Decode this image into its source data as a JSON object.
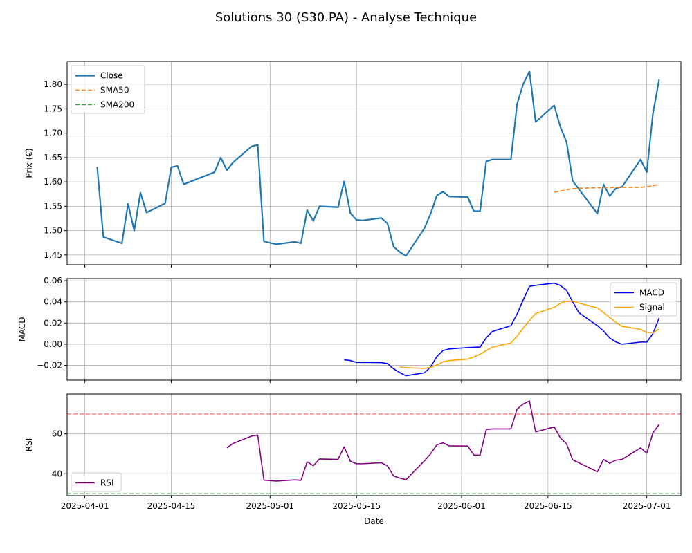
{
  "figure": {
    "title": "Solutions 30 (S30.PA) - Analyse Technique"
  },
  "chart_data": [
    {
      "type": "line",
      "panel": "price",
      "ylabel": "Prix (€)",
      "xlabel": "",
      "ylim": [
        1.43,
        1.847
      ],
      "yticks": [
        1.45,
        1.5,
        1.55,
        1.6,
        1.65,
        1.7,
        1.75,
        1.8
      ],
      "ytick_labels": [
        "1.45",
        "1.50",
        "1.55",
        "1.60",
        "1.65",
        "1.70",
        "1.75",
        "1.80"
      ],
      "grid": true,
      "legend": {
        "position": "top-left",
        "entries": [
          "Close",
          "SMA50",
          "SMA200"
        ]
      },
      "series": [
        {
          "name": "Close",
          "color": "#1f77b4",
          "style": "solid",
          "x": [
            "2025-04-03",
            "2025-04-04",
            "2025-04-07",
            "2025-04-08",
            "2025-04-09",
            "2025-04-10",
            "2025-04-11",
            "2025-04-14",
            "2025-04-15",
            "2025-04-16",
            "2025-04-17",
            "2025-04-22",
            "2025-04-23",
            "2025-04-24",
            "2025-04-25",
            "2025-04-28",
            "2025-04-29",
            "2025-04-30",
            "2025-05-02",
            "2025-05-05",
            "2025-05-06",
            "2025-05-07",
            "2025-05-08",
            "2025-05-09",
            "2025-05-12",
            "2025-05-13",
            "2025-05-14",
            "2025-05-15",
            "2025-05-16",
            "2025-05-19",
            "2025-05-20",
            "2025-05-21",
            "2025-05-22",
            "2025-05-23",
            "2025-05-26",
            "2025-05-27",
            "2025-05-28",
            "2025-05-29",
            "2025-05-30",
            "2025-06-02",
            "2025-06-03",
            "2025-06-04",
            "2025-06-05",
            "2025-06-06",
            "2025-06-09",
            "2025-06-10",
            "2025-06-11",
            "2025-06-12",
            "2025-06-13",
            "2025-06-16",
            "2025-06-17",
            "2025-06-18",
            "2025-06-19",
            "2025-06-23",
            "2025-06-24",
            "2025-06-25",
            "2025-06-26",
            "2025-06-27",
            "2025-06-30",
            "2025-07-01",
            "2025-07-02",
            "2025-07-03"
          ],
          "values": [
            1.631,
            1.487,
            1.474,
            1.555,
            1.5,
            1.578,
            1.537,
            1.556,
            1.63,
            1.633,
            1.595,
            1.62,
            1.65,
            1.624,
            1.64,
            1.673,
            1.676,
            1.478,
            1.472,
            1.477,
            1.474,
            1.542,
            1.52,
            1.55,
            1.548,
            1.601,
            1.536,
            1.522,
            1.521,
            1.526,
            1.515,
            1.467,
            1.456,
            1.448,
            1.505,
            1.535,
            1.572,
            1.58,
            1.57,
            1.569,
            1.54,
            1.54,
            1.642,
            1.646,
            1.646,
            1.76,
            1.801,
            1.827,
            1.723,
            1.757,
            1.713,
            1.682,
            1.602,
            1.535,
            1.595,
            1.571,
            1.587,
            1.59,
            1.646,
            1.62,
            1.74,
            1.81
          ]
        },
        {
          "name": "SMA50",
          "color": "#ff7f0e",
          "style": "dashed",
          "x": [
            "2025-06-16",
            "2025-06-17",
            "2025-06-18",
            "2025-06-19",
            "2025-06-20",
            "2025-06-23",
            "2025-06-24",
            "2025-06-25",
            "2025-06-26",
            "2025-06-27",
            "2025-06-30",
            "2025-07-01",
            "2025-07-02",
            "2025-07-03"
          ],
          "values": [
            1.579,
            1.581,
            1.584,
            1.586,
            1.587,
            1.588,
            1.588,
            1.588,
            1.589,
            1.589,
            1.589,
            1.59,
            1.592,
            1.595
          ]
        },
        {
          "name": "SMA200",
          "color": "#2ca02c",
          "style": "dashed",
          "x": [],
          "values": []
        }
      ]
    },
    {
      "type": "line",
      "panel": "macd",
      "ylabel": "MACD",
      "xlabel": "",
      "ylim": [
        -0.034,
        0.062
      ],
      "yticks": [
        -0.02,
        0.0,
        0.02,
        0.04,
        0.06
      ],
      "ytick_labels": [
        "−0.02",
        "0.00",
        "0.02",
        "0.04",
        "0.06"
      ],
      "grid": true,
      "legend": {
        "position": "top-right",
        "entries": [
          "MACD",
          "Signal"
        ]
      },
      "series": [
        {
          "name": "MACD",
          "color": "#0000ff",
          "style": "solid",
          "x": [
            "2025-05-13",
            "2025-05-14",
            "2025-05-15",
            "2025-05-16",
            "2025-05-19",
            "2025-05-20",
            "2025-05-21",
            "2025-05-22",
            "2025-05-23",
            "2025-05-26",
            "2025-05-27",
            "2025-05-28",
            "2025-05-29",
            "2025-05-30",
            "2025-06-02",
            "2025-06-03",
            "2025-06-04",
            "2025-06-05",
            "2025-06-06",
            "2025-06-09",
            "2025-06-10",
            "2025-06-11",
            "2025-06-12",
            "2025-06-13",
            "2025-06-16",
            "2025-06-17",
            "2025-06-18",
            "2025-06-19",
            "2025-06-20",
            "2025-06-23",
            "2025-06-24",
            "2025-06-25",
            "2025-06-26",
            "2025-06-27",
            "2025-06-30",
            "2025-07-01",
            "2025-07-02",
            "2025-07-03"
          ],
          "values": [
            -0.0148,
            -0.0154,
            -0.0172,
            -0.0172,
            -0.0174,
            -0.0183,
            -0.0233,
            -0.0268,
            -0.0298,
            -0.027,
            -0.0214,
            -0.0117,
            -0.006,
            -0.0045,
            -0.0032,
            -0.0029,
            -0.0027,
            0.006,
            0.012,
            0.0175,
            0.0286,
            0.042,
            0.0547,
            0.0556,
            0.0577,
            0.0555,
            0.0509,
            0.04,
            0.0298,
            0.0175,
            0.0125,
            0.0058,
            0.0022,
            0.0,
            0.002,
            0.002,
            0.01,
            0.0248
          ]
        },
        {
          "name": "Signal",
          "color": "#ffa500",
          "style": "solid",
          "x": [
            "2025-05-22",
            "2025-05-23",
            "2025-05-26",
            "2025-05-27",
            "2025-05-28",
            "2025-05-29",
            "2025-05-30",
            "2025-06-02",
            "2025-06-03",
            "2025-06-04",
            "2025-06-05",
            "2025-06-06",
            "2025-06-09",
            "2025-06-10",
            "2025-06-11",
            "2025-06-12",
            "2025-06-13",
            "2025-06-16",
            "2025-06-17",
            "2025-06-18",
            "2025-06-19",
            "2025-06-20",
            "2025-06-23",
            "2025-06-24",
            "2025-06-25",
            "2025-06-26",
            "2025-06-27",
            "2025-06-30",
            "2025-07-01",
            "2025-07-02",
            "2025-07-03"
          ],
          "values": [
            -0.0215,
            -0.0222,
            -0.0229,
            -0.0219,
            -0.0198,
            -0.0167,
            -0.0155,
            -0.0141,
            -0.012,
            -0.0095,
            -0.0061,
            -0.0028,
            0.0012,
            0.0075,
            0.0153,
            0.0225,
            0.029,
            0.0348,
            0.0386,
            0.0407,
            0.0407,
            0.0388,
            0.0343,
            0.03,
            0.0253,
            0.0207,
            0.0168,
            0.014,
            0.0111,
            0.011,
            0.0142
          ]
        }
      ]
    },
    {
      "type": "line",
      "panel": "rsi",
      "ylabel": "RSI",
      "xlabel": "Date",
      "ylim": [
        29.0,
        80.0
      ],
      "yticks": [
        40,
        60
      ],
      "ytick_labels": [
        "40",
        "60"
      ],
      "xticks": [
        "2025-04-01",
        "2025-04-15",
        "2025-05-01",
        "2025-05-15",
        "2025-06-01",
        "2025-06-15",
        "2025-07-01"
      ],
      "xtick_labels": [
        "2025-04-01",
        "2025-04-15",
        "2025-05-01",
        "2025-05-15",
        "2025-06-01",
        "2025-06-15",
        "2025-07-01"
      ],
      "grid": true,
      "legend": {
        "position": "bottom-left",
        "entries": [
          "RSI"
        ]
      },
      "thresholds": [
        {
          "value": 70,
          "color": "#ff0000"
        },
        {
          "value": 30,
          "color": "#008000"
        }
      ],
      "series": [
        {
          "name": "RSI",
          "color": "#800080",
          "style": "solid",
          "x": [
            "2025-04-24",
            "2025-04-25",
            "2025-04-28",
            "2025-04-29",
            "2025-04-30",
            "2025-05-02",
            "2025-05-05",
            "2025-05-06",
            "2025-05-07",
            "2025-05-08",
            "2025-05-09",
            "2025-05-12",
            "2025-05-13",
            "2025-05-14",
            "2025-05-15",
            "2025-05-16",
            "2025-05-19",
            "2025-05-20",
            "2025-05-21",
            "2025-05-22",
            "2025-05-23",
            "2025-05-26",
            "2025-05-27",
            "2025-05-28",
            "2025-05-29",
            "2025-05-30",
            "2025-06-02",
            "2025-06-03",
            "2025-06-04",
            "2025-06-05",
            "2025-06-06",
            "2025-06-09",
            "2025-06-10",
            "2025-06-11",
            "2025-06-12",
            "2025-06-13",
            "2025-06-16",
            "2025-06-17",
            "2025-06-18",
            "2025-06-19",
            "2025-06-23",
            "2025-06-24",
            "2025-06-25",
            "2025-06-26",
            "2025-06-27",
            "2025-06-30",
            "2025-07-01",
            "2025-07-02",
            "2025-07-03"
          ],
          "values": [
            53.0,
            55.2,
            58.9,
            59.4,
            36.8,
            36.3,
            36.9,
            36.7,
            46.0,
            44.0,
            47.4,
            47.2,
            53.5,
            46.3,
            45.0,
            45.0,
            45.5,
            44.0,
            38.9,
            37.8,
            37.0,
            46.5,
            50.0,
            54.5,
            55.5,
            54.0,
            53.9,
            49.4,
            49.3,
            62.2,
            62.5,
            62.5,
            72.5,
            75.0,
            76.5,
            61.0,
            63.5,
            58.0,
            55.0,
            47.0,
            41.0,
            47.2,
            45.3,
            46.8,
            47.2,
            53.0,
            50.3,
            60.5,
            64.7
          ]
        }
      ]
    }
  ]
}
